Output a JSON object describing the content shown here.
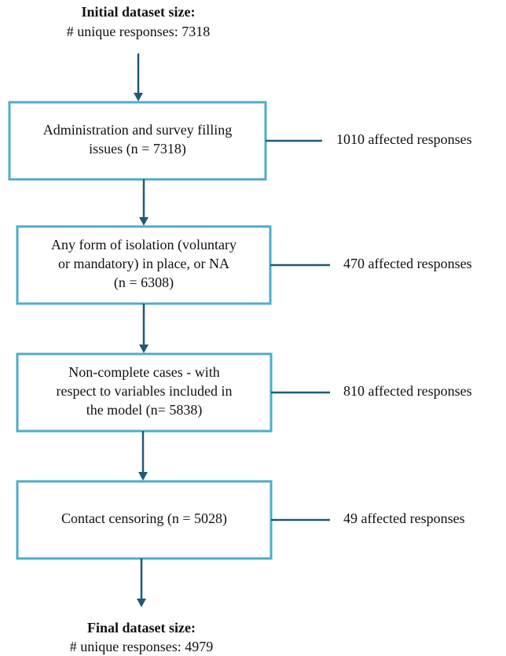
{
  "header": {
    "title": "Initial dataset size:",
    "subtitle": "# unique responses: 7318"
  },
  "steps": [
    {
      "lines": [
        "Administration and survey filling",
        "issues (n = 7318)"
      ],
      "excluded": "1010 affected responses"
    },
    {
      "lines": [
        "Any form of isolation (voluntary",
        "or mandatory) in place, or NA",
        "(n = 6308)"
      ],
      "excluded": "470 affected responses"
    },
    {
      "lines": [
        "Non-complete cases - with",
        "respect to variables included in",
        "the model (n= 5838)"
      ],
      "excluded": "810 affected responses"
    },
    {
      "lines": [
        "Contact censoring (n = 5028)"
      ],
      "excluded": "49 affected responses"
    }
  ],
  "footer": {
    "title": "Final dataset size:",
    "subtitle": "# unique responses: 4979"
  }
}
